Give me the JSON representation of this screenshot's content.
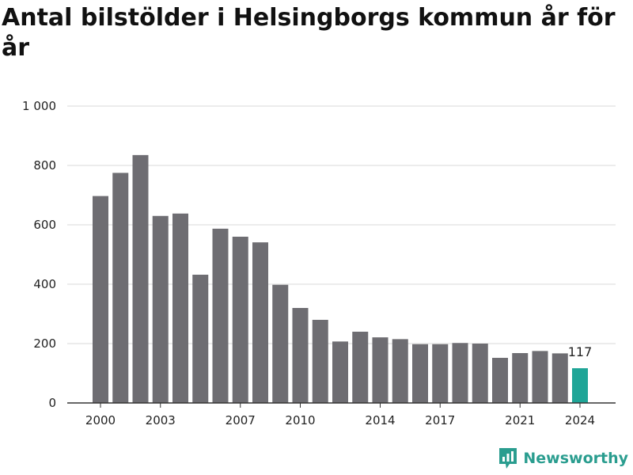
{
  "chart_data": {
    "type": "bar",
    "title": "Antal bilstölder i Helsingborgs kommun år för år",
    "xlabel": "",
    "ylabel": "",
    "categories": [
      "2000",
      "2001",
      "2002",
      "2003",
      "2004",
      "2005",
      "2006",
      "2007",
      "2008",
      "2009",
      "2010",
      "2011",
      "2012",
      "2013",
      "2014",
      "2015",
      "2016",
      "2017",
      "2018",
      "2019",
      "2020",
      "2021",
      "2022",
      "2023",
      "2024"
    ],
    "values": [
      697,
      775,
      835,
      630,
      638,
      432,
      587,
      560,
      541,
      398,
      320,
      280,
      207,
      240,
      221,
      215,
      198,
      198,
      202,
      200,
      152,
      168,
      175,
      167,
      117
    ],
    "x_tick_labels": [
      "2000",
      "2003",
      "2007",
      "2010",
      "2014",
      "2017",
      "2021",
      "2024"
    ],
    "y_tick_labels": [
      "0",
      "200",
      "400",
      "600",
      "800",
      "1 000"
    ],
    "ylim": [
      0,
      1000
    ],
    "grid": true,
    "highlight": {
      "category": "2024",
      "label": "117"
    },
    "colors": {
      "bar": "#6e6d72",
      "highlight": "#1fa597",
      "grid": "#d9d9d9",
      "axis": "#333333"
    }
  },
  "branding": {
    "name": "Newsworthy",
    "icon": "bar-chart-pin-icon"
  }
}
